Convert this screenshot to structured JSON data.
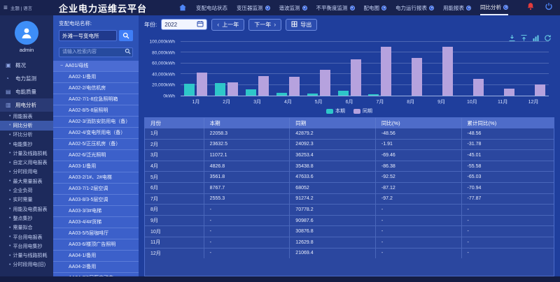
{
  "header": {
    "theme_lang": "主题 | 语言",
    "title": "企业电力运维云平台",
    "nav": [
      {
        "label": "变配电站状态",
        "badge": false,
        "active": false
      },
      {
        "label": "变压器监测",
        "badge": true,
        "active": false
      },
      {
        "label": "谐波监测",
        "badge": true,
        "active": false
      },
      {
        "label": "不平衡度监测",
        "badge": true,
        "active": false
      },
      {
        "label": "配电图",
        "badge": true,
        "active": false
      },
      {
        "label": "电力运行报表",
        "badge": true,
        "active": false
      },
      {
        "label": "用能报表",
        "badge": true,
        "active": false
      },
      {
        "label": "同比分析",
        "badge": true,
        "active": true
      }
    ]
  },
  "sidebar": {
    "username": "admin",
    "menu": [
      {
        "label": "概况",
        "icon": "dashboard-icon",
        "active": false
      },
      {
        "label": "电力监测",
        "icon": "gauge-icon",
        "active": false
      },
      {
        "label": "电能质量",
        "icon": "quality-icon",
        "active": false
      },
      {
        "label": "用电分析",
        "icon": "analysis-icon",
        "active": true
      }
    ],
    "submenu": [
      "用能报表",
      "同比分析",
      "环比分析",
      "电能集抄",
      "计量及线路损耗",
      "自定义用电报表",
      "分时段用电",
      "最大需量报表",
      "企业负荷",
      "实时需量",
      "用能及电费报表",
      "整点集抄",
      "需量拟合",
      "平台用电报表",
      "平台用电集抄",
      "计量与线路损耗",
      "分时段用电(旧)"
    ],
    "active_submenu": "同比分析"
  },
  "station_panel": {
    "label": "变配电站名称:",
    "station_value": "外滩一号变电所",
    "search_placeholder": "请输入检索内容",
    "tree_root": "AA01/母线",
    "tree_items": [
      "AA02-1/备用",
      "AA02-2/电信机房",
      "AA02-7/1-8应急照明箱",
      "AA02-8/5-8层照明",
      "AA02-3/消防安防用电（备）",
      "AA02-4/变电所用电（备）",
      "AA02-5/正压机房（备）",
      "AA02-6/泛光照明",
      "AA03-1/备用",
      "AA03-2/1#、2#电梯",
      "AA03-7/1-2层空调",
      "AA03-8/3-5层空调",
      "AA03-3/3#电梯",
      "AA03-4/4#货梯",
      "AA03-5/5层咖啡厅",
      "AA03-6/楼顶广告照明",
      "AA04-1/备用",
      "AA04-2/备用",
      "AA04-7/6层厨房动力"
    ]
  },
  "toolbar": {
    "year_label": "年份:",
    "year_value": "2022",
    "prev_label": "上一年",
    "next_label": "下一年",
    "export_label": "导出"
  },
  "chart_data": {
    "type": "bar",
    "unit": "kWh",
    "categories": [
      "1月",
      "2月",
      "3月",
      "4月",
      "5月",
      "6月",
      "7月",
      "8月",
      "9月",
      "10月",
      "11月",
      "12月"
    ],
    "series": [
      {
        "name": "本期",
        "color": "#2ec7c9",
        "values": [
          22058.3,
          23632.5,
          11072.1,
          4826.8,
          3561.8,
          8767.7,
          2555.3,
          null,
          null,
          null,
          null,
          null
        ]
      },
      {
        "name": "同期",
        "color": "#b6a2de",
        "values": [
          42879.2,
          24092.3,
          36253.4,
          35438.8,
          47633.6,
          68052,
          91274.2,
          70778.2,
          90987.6,
          30876.8,
          12629.8,
          21069.4
        ]
      }
    ],
    "y_ticks": [
      "0kWh",
      "20,000kWh",
      "40,000kWh",
      "60,000kWh",
      "80,000kWh",
      "100,000kWh"
    ],
    "ylim": [
      0,
      100000
    ],
    "grid": true,
    "legend_position": "bottom"
  },
  "table": {
    "headers": [
      "月份",
      "本期",
      "同期",
      "同比(%)",
      "累计同比(%)"
    ],
    "rows": [
      [
        "1月",
        "22058.3",
        "42879.2",
        "-48.56",
        "-48.56"
      ],
      [
        "2月",
        "23632.5",
        "24092.3",
        "-1.91",
        "-31.78"
      ],
      [
        "3月",
        "11072.1",
        "36253.4",
        "-69.46",
        "-45.01"
      ],
      [
        "4月",
        "4826.8",
        "35438.8",
        "-86.38",
        "-55.58"
      ],
      [
        "5月",
        "3561.8",
        "47633.6",
        "-92.52",
        "-65.03"
      ],
      [
        "6月",
        "8767.7",
        "68052",
        "-87.12",
        "-70.94"
      ],
      [
        "7月",
        "2555.3",
        "91274.2",
        "-97.2",
        "-77.87"
      ],
      [
        "8月",
        "-",
        "70778.2",
        "-",
        "-"
      ],
      [
        "9月",
        "-",
        "90987.6",
        "-",
        "-"
      ],
      [
        "10月",
        "-",
        "30876.8",
        "-",
        "-"
      ],
      [
        "11月",
        "-",
        "12629.8",
        "-",
        "-"
      ],
      [
        "12月",
        "-",
        "21069.4",
        "-",
        "-"
      ]
    ]
  }
}
